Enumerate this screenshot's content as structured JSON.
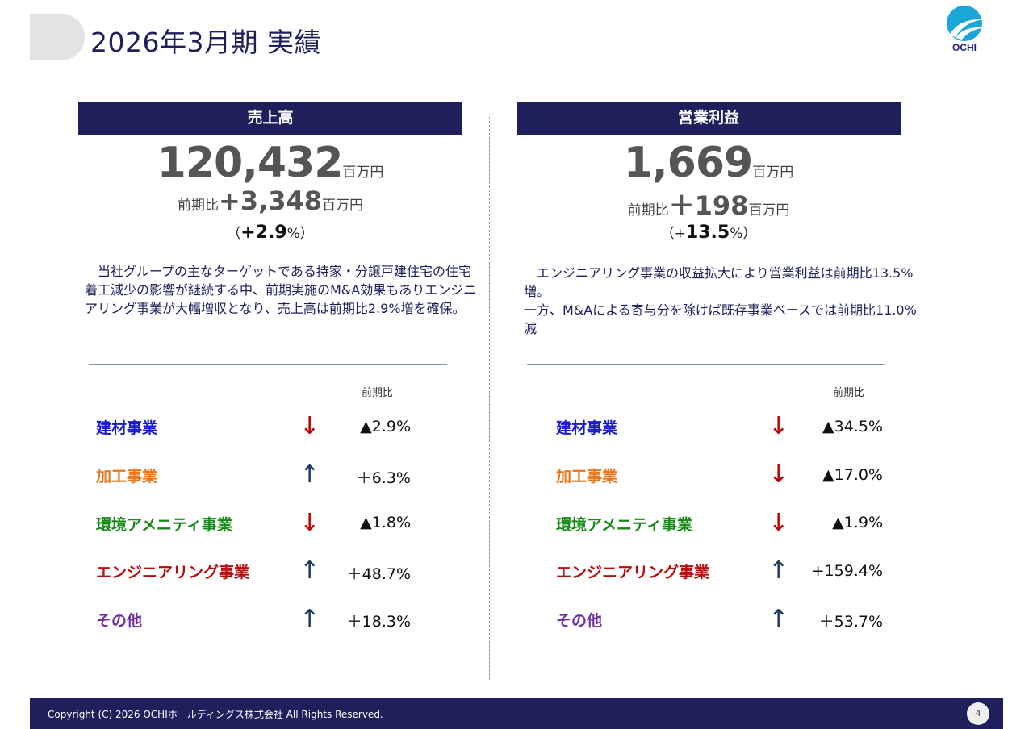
{
  "page": {
    "title": "2026年3月期 実績"
  },
  "logo": {
    "text": "OCHI",
    "color": "#1aa7d8"
  },
  "colors": {
    "navy": "#1f1f5c",
    "down_arrow": "#c00000",
    "up_arrow": "#1f3a5c"
  },
  "sales": {
    "header": "売上高",
    "value": "120,432",
    "unit": "百万円",
    "yoy_label": "前期比",
    "yoy_value": "+3,348",
    "yoy_unit": "百万円",
    "pct_open": "（",
    "pct_value": "+2.9",
    "pct_close": "%）",
    "description": "　当社グループの主なターゲットである持家・分譲戸建住宅の住宅着工減少の影響が継続する中、前期実施のM&A効果もありエンジニアリング事業が大幅増収となり、売上高は前期比2.9%増を確保。",
    "column_label": "前期比",
    "segments": [
      {
        "name": "建材事業",
        "color": "#1a1acc",
        "direction": "down",
        "arrow": "↓",
        "change": "▲2.9%"
      },
      {
        "name": "加工事業",
        "color": "#e8771e",
        "direction": "up",
        "arrow": "↑",
        "change": "＋6.3%"
      },
      {
        "name": "環境アメニティ事業",
        "color": "#168a16",
        "direction": "down",
        "arrow": "↓",
        "change": "▲1.8%"
      },
      {
        "name": "エンジニアリング事業",
        "color": "#b50f0f",
        "direction": "up",
        "arrow": "↑",
        "change": "＋48.7%"
      },
      {
        "name": "その他",
        "color": "#7030a0",
        "direction": "up",
        "arrow": "↑",
        "change": "＋18.3%"
      }
    ]
  },
  "profit": {
    "header": "営業利益",
    "value": "1,669",
    "unit": "百万円",
    "yoy_label": "前期比",
    "yoy_value": "＋198",
    "yoy_unit": "百万円",
    "pct_open": "（+",
    "pct_value": "13.5",
    "pct_close": "%）",
    "description_lines": [
      "　エンジニアリング事業の収益拡大により営業利益は前期比13.5%増。",
      "一方、M&Aによる寄与分を除けば既存事業ベースでは前期比11.0%減"
    ],
    "column_label": "前期比",
    "segments": [
      {
        "name": "建材事業",
        "color": "#1a1acc",
        "direction": "down",
        "arrow": "↓",
        "change": "▲34.5%"
      },
      {
        "name": "加工事業",
        "color": "#e8771e",
        "direction": "down",
        "arrow": "↓",
        "change": "▲17.0%"
      },
      {
        "name": "環境アメニティ事業",
        "color": "#168a16",
        "direction": "down",
        "arrow": "↓",
        "change": "▲1.9%"
      },
      {
        "name": "エンジニアリング事業",
        "color": "#b50f0f",
        "direction": "up",
        "arrow": "↑",
        "change": "+159.4%"
      },
      {
        "name": "その他",
        "color": "#7030a0",
        "direction": "up",
        "arrow": "↑",
        "change": "＋53.7%"
      }
    ]
  },
  "footer": {
    "copyright": "Copyright (C) 2026 OCHIホールディングス株式会社 All Rights Reserved.",
    "page_number": "4"
  }
}
